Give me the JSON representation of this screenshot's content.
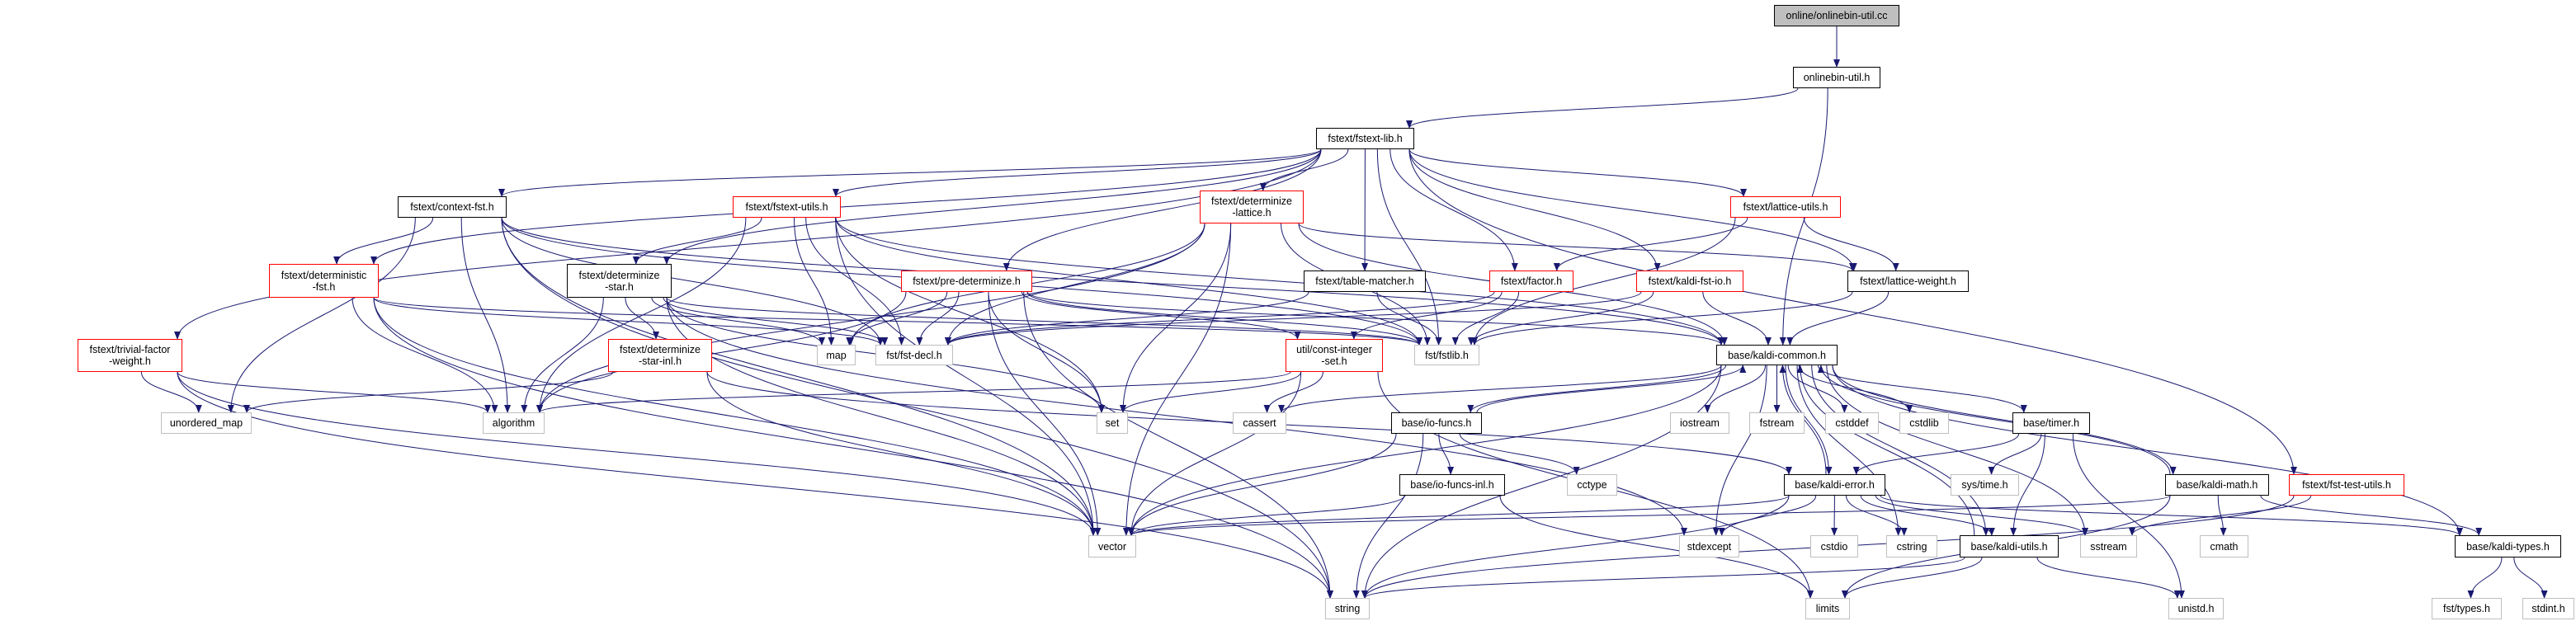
{
  "colors": {
    "edge": "#191970",
    "documented_border": "#000000",
    "truncated_border": "#ff0000",
    "external_border": "#bfbfbf",
    "root_fill": "#bfbfbf"
  },
  "nodes": [
    {
      "id": "root",
      "kind": "root",
      "lines": [
        "online/onlinebin-util.cc"
      ]
    },
    {
      "id": "onlinebin_h",
      "kind": "doc",
      "lines": [
        "onlinebin-util.h"
      ]
    },
    {
      "id": "fstext_lib",
      "kind": "doc",
      "lines": [
        "fstext/fstext-lib.h"
      ]
    },
    {
      "id": "context_fst",
      "kind": "doc",
      "lines": [
        "fstext/context-fst.h"
      ]
    },
    {
      "id": "fstext_utils",
      "kind": "trunc",
      "lines": [
        "fstext/fstext-utils.h"
      ]
    },
    {
      "id": "det_lattice",
      "kind": "trunc",
      "lines": [
        "fstext/determinize",
        "-lattice.h"
      ]
    },
    {
      "id": "lattice_utils",
      "kind": "trunc",
      "lines": [
        "fstext/lattice-utils.h"
      ]
    },
    {
      "id": "deterministic_fst",
      "kind": "trunc",
      "lines": [
        "fstext/deterministic",
        "-fst.h"
      ]
    },
    {
      "id": "det_star",
      "kind": "doc",
      "lines": [
        "fstext/determinize",
        "-star.h"
      ]
    },
    {
      "id": "pre_det",
      "kind": "trunc",
      "lines": [
        "fstext/pre-determinize.h"
      ]
    },
    {
      "id": "table_matcher",
      "kind": "doc",
      "lines": [
        "fstext/table-matcher.h"
      ]
    },
    {
      "id": "factor",
      "kind": "trunc",
      "lines": [
        "fstext/factor.h"
      ]
    },
    {
      "id": "kaldi_fst_io",
      "kind": "trunc",
      "lines": [
        "fstext/kaldi-fst-io.h"
      ]
    },
    {
      "id": "lattice_weight",
      "kind": "doc",
      "lines": [
        "fstext/lattice-weight.h"
      ]
    },
    {
      "id": "trivial_fw",
      "kind": "trunc",
      "lines": [
        "fstext/trivial-factor",
        "-weight.h"
      ]
    },
    {
      "id": "det_star_inl",
      "kind": "trunc",
      "lines": [
        "fstext/determinize",
        "-star-inl.h"
      ]
    },
    {
      "id": "map",
      "kind": "ext",
      "lines": [
        "map"
      ]
    },
    {
      "id": "fst_decl",
      "kind": "ext",
      "lines": [
        "fst/fst-decl.h"
      ]
    },
    {
      "id": "const_int_set",
      "kind": "trunc",
      "lines": [
        "util/const-integer",
        "-set.h"
      ]
    },
    {
      "id": "fstlib",
      "kind": "ext",
      "lines": [
        "fst/fstlib.h"
      ]
    },
    {
      "id": "kaldi_common",
      "kind": "doc",
      "lines": [
        "base/kaldi-common.h"
      ]
    },
    {
      "id": "unordered_map",
      "kind": "ext",
      "lines": [
        "unordered_map"
      ]
    },
    {
      "id": "algorithm",
      "kind": "ext",
      "lines": [
        "algorithm"
      ]
    },
    {
      "id": "set",
      "kind": "ext",
      "lines": [
        "set"
      ]
    },
    {
      "id": "cassert",
      "kind": "ext",
      "lines": [
        "cassert"
      ]
    },
    {
      "id": "io_funcs",
      "kind": "doc",
      "lines": [
        "base/io-funcs.h"
      ]
    },
    {
      "id": "iostream",
      "kind": "ext",
      "lines": [
        "iostream"
      ]
    },
    {
      "id": "fstream",
      "kind": "ext",
      "lines": [
        "fstream"
      ]
    },
    {
      "id": "cstddef",
      "kind": "ext",
      "lines": [
        "cstddef"
      ]
    },
    {
      "id": "cstdlib",
      "kind": "ext",
      "lines": [
        "cstdlib"
      ]
    },
    {
      "id": "timer",
      "kind": "doc",
      "lines": [
        "base/timer.h"
      ]
    },
    {
      "id": "io_funcs_inl",
      "kind": "doc",
      "lines": [
        "base/io-funcs-inl.h"
      ]
    },
    {
      "id": "cctype",
      "kind": "ext",
      "lines": [
        "cctype"
      ]
    },
    {
      "id": "kaldi_error",
      "kind": "doc",
      "lines": [
        "base/kaldi-error.h"
      ]
    },
    {
      "id": "sys_time",
      "kind": "ext",
      "lines": [
        "sys/time.h"
      ]
    },
    {
      "id": "kaldi_math",
      "kind": "doc",
      "lines": [
        "base/kaldi-math.h"
      ]
    },
    {
      "id": "fst_test_utils",
      "kind": "trunc",
      "lines": [
        "fstext/fst-test-utils.h"
      ]
    },
    {
      "id": "vector",
      "kind": "ext",
      "lines": [
        "vector"
      ]
    },
    {
      "id": "stdexcept",
      "kind": "ext",
      "lines": [
        "stdexcept"
      ]
    },
    {
      "id": "cstdio",
      "kind": "ext",
      "lines": [
        "cstdio"
      ]
    },
    {
      "id": "cstring",
      "kind": "ext",
      "lines": [
        "cstring"
      ]
    },
    {
      "id": "kaldi_utils",
      "kind": "doc",
      "lines": [
        "base/kaldi-utils.h"
      ]
    },
    {
      "id": "sstream",
      "kind": "ext",
      "lines": [
        "sstream"
      ]
    },
    {
      "id": "cmath",
      "kind": "ext",
      "lines": [
        "cmath"
      ]
    },
    {
      "id": "kaldi_types",
      "kind": "doc",
      "lines": [
        "base/kaldi-types.h"
      ]
    },
    {
      "id": "string",
      "kind": "ext",
      "lines": [
        "string"
      ]
    },
    {
      "id": "limits",
      "kind": "ext",
      "lines": [
        "limits"
      ]
    },
    {
      "id": "unistd",
      "kind": "ext",
      "lines": [
        "unistd.h"
      ]
    },
    {
      "id": "fst_types",
      "kind": "ext",
      "lines": [
        "fst/types.h"
      ]
    },
    {
      "id": "stdint",
      "kind": "ext",
      "lines": [
        "stdint.h"
      ]
    }
  ],
  "edges": [
    [
      "root",
      "onlinebin_h"
    ],
    [
      "onlinebin_h",
      "fstext_lib"
    ],
    [
      "onlinebin_h",
      "kaldi_common"
    ],
    [
      "fstext_lib",
      "context_fst"
    ],
    [
      "fstext_lib",
      "fstext_utils"
    ],
    [
      "fstext_lib",
      "det_lattice"
    ],
    [
      "fstext_lib",
      "pre_det"
    ],
    [
      "fstext_lib",
      "table_matcher"
    ],
    [
      "fstext_lib",
      "factor"
    ],
    [
      "fstext_lib",
      "kaldi_fst_io"
    ],
    [
      "fstext_lib",
      "lattice_utils"
    ],
    [
      "fstext_lib",
      "lattice_weight"
    ],
    [
      "fstext_lib",
      "deterministic_fst"
    ],
    [
      "fstext_lib",
      "det_star"
    ],
    [
      "fstext_lib",
      "trivial_fw"
    ],
    [
      "fstext_lib",
      "fst_test_utils"
    ],
    [
      "fstext_lib",
      "fstlib"
    ],
    [
      "context_fst",
      "deterministic_fst"
    ],
    [
      "context_fst",
      "algorithm"
    ],
    [
      "context_fst",
      "unordered_map"
    ],
    [
      "context_fst",
      "string"
    ],
    [
      "context_fst",
      "vector"
    ],
    [
      "context_fst",
      "fstlib"
    ],
    [
      "context_fst",
      "fst_decl"
    ],
    [
      "context_fst",
      "kaldi_common"
    ],
    [
      "fstext_utils",
      "det_star"
    ],
    [
      "fstext_utils",
      "map"
    ],
    [
      "fstext_utils",
      "set"
    ],
    [
      "fstext_utils",
      "vector"
    ],
    [
      "fstext_utils",
      "algorithm"
    ],
    [
      "fstext_utils",
      "fst_decl"
    ],
    [
      "fstext_utils",
      "fstlib"
    ],
    [
      "fstext_utils",
      "kaldi_common"
    ],
    [
      "deterministic_fst",
      "algorithm"
    ],
    [
      "deterministic_fst",
      "string"
    ],
    [
      "deterministic_fst",
      "vector"
    ],
    [
      "deterministic_fst",
      "fstlib"
    ],
    [
      "deterministic_fst",
      "fst_decl"
    ],
    [
      "det_star",
      "det_star_inl"
    ],
    [
      "det_star",
      "algorithm"
    ],
    [
      "det_star",
      "map"
    ],
    [
      "det_star",
      "set"
    ],
    [
      "det_star",
      "vector"
    ],
    [
      "det_star",
      "stdexcept"
    ],
    [
      "det_star",
      "fst_decl"
    ],
    [
      "det_star",
      "fstlib"
    ],
    [
      "det_star_inl",
      "unordered_map"
    ],
    [
      "det_star_inl",
      "vector"
    ],
    [
      "det_star_inl",
      "kaldi_error"
    ],
    [
      "trivial_fw",
      "unordered_map"
    ],
    [
      "trivial_fw",
      "algorithm"
    ],
    [
      "trivial_fw",
      "string"
    ],
    [
      "trivial_fw",
      "vector"
    ],
    [
      "det_lattice",
      "fst_decl"
    ],
    [
      "det_lattice",
      "fstlib"
    ],
    [
      "det_lattice",
      "set"
    ],
    [
      "det_lattice",
      "vector"
    ],
    [
      "det_lattice",
      "map"
    ],
    [
      "det_lattice",
      "algorithm"
    ],
    [
      "det_lattice",
      "lattice_weight"
    ],
    [
      "det_lattice",
      "kaldi_common"
    ],
    [
      "pre_det",
      "fst_decl"
    ],
    [
      "pre_det",
      "fstlib"
    ],
    [
      "pre_det",
      "algorithm"
    ],
    [
      "pre_det",
      "map"
    ],
    [
      "pre_det",
      "set"
    ],
    [
      "pre_det",
      "vector"
    ],
    [
      "pre_det",
      "const_int_set"
    ],
    [
      "pre_det",
      "kaldi_common"
    ],
    [
      "pre_det",
      "string"
    ],
    [
      "table_matcher",
      "fst_decl"
    ],
    [
      "table_matcher",
      "fstlib"
    ],
    [
      "factor",
      "fst_decl"
    ],
    [
      "factor",
      "fstlib"
    ],
    [
      "factor",
      "const_int_set"
    ],
    [
      "kaldi_fst_io",
      "fst_decl"
    ],
    [
      "kaldi_fst_io",
      "fstlib"
    ],
    [
      "kaldi_fst_io",
      "kaldi_common"
    ],
    [
      "lattice_utils",
      "factor"
    ],
    [
      "lattice_utils",
      "lattice_weight"
    ],
    [
      "lattice_utils",
      "fstlib"
    ],
    [
      "lattice_weight",
      "fstlib"
    ],
    [
      "lattice_weight",
      "kaldi_common"
    ],
    [
      "const_int_set",
      "set"
    ],
    [
      "const_int_set",
      "cassert"
    ],
    [
      "const_int_set",
      "vector"
    ],
    [
      "const_int_set",
      "limits"
    ],
    [
      "const_int_set",
      "algorithm"
    ],
    [
      "fst_test_utils",
      "sstream"
    ],
    [
      "fst_test_utils",
      "string"
    ],
    [
      "kaldi_common",
      "string"
    ],
    [
      "kaldi_common",
      "vector"
    ],
    [
      "kaldi_common",
      "iostream"
    ],
    [
      "kaldi_common",
      "fstream"
    ],
    [
      "kaldi_common",
      "cstddef"
    ],
    [
      "kaldi_common",
      "cstdlib"
    ],
    [
      "kaldi_common",
      "io_funcs"
    ],
    [
      "kaldi_common",
      "timer"
    ],
    [
      "kaldi_common",
      "kaldi_error"
    ],
    [
      "kaldi_common",
      "kaldi_math"
    ],
    [
      "kaldi_common",
      "kaldi_utils"
    ],
    [
      "kaldi_common",
      "kaldi_types"
    ],
    [
      "kaldi_common",
      "sstream"
    ],
    [
      "kaldi_common",
      "stdexcept"
    ],
    [
      "kaldi_common",
      "cstring"
    ],
    [
      "kaldi_common",
      "cassert"
    ],
    [
      "io_funcs",
      "kaldi_common"
    ],
    [
      "io_funcs",
      "vector"
    ],
    [
      "io_funcs",
      "string"
    ],
    [
      "io_funcs",
      "cctype"
    ],
    [
      "io_funcs",
      "io_funcs_inl"
    ],
    [
      "io_funcs_inl",
      "vector"
    ],
    [
      "io_funcs_inl",
      "limits"
    ],
    [
      "timer",
      "kaldi_error"
    ],
    [
      "timer",
      "sys_time"
    ],
    [
      "timer",
      "kaldi_utils"
    ],
    [
      "timer",
      "unistd"
    ],
    [
      "kaldi_error",
      "vector"
    ],
    [
      "kaldi_error",
      "stdexcept"
    ],
    [
      "kaldi_error",
      "cstdio"
    ],
    [
      "kaldi_error",
      "cstring"
    ],
    [
      "kaldi_error",
      "kaldi_utils"
    ],
    [
      "kaldi_error",
      "sstream"
    ],
    [
      "kaldi_error",
      "kaldi_types"
    ],
    [
      "kaldi_error",
      "string"
    ],
    [
      "kaldi_error",
      "kaldi_common"
    ],
    [
      "kaldi_math",
      "kaldi_common"
    ],
    [
      "kaldi_math",
      "cmath"
    ],
    [
      "kaldi_math",
      "limits"
    ],
    [
      "kaldi_math",
      "vector"
    ],
    [
      "kaldi_math",
      "kaldi_types"
    ],
    [
      "kaldi_utils",
      "kaldi_common"
    ],
    [
      "kaldi_utils",
      "string"
    ],
    [
      "kaldi_utils",
      "limits"
    ],
    [
      "kaldi_utils",
      "unistd"
    ],
    [
      "kaldi_types",
      "fst_types"
    ],
    [
      "kaldi_types",
      "stdint"
    ]
  ]
}
